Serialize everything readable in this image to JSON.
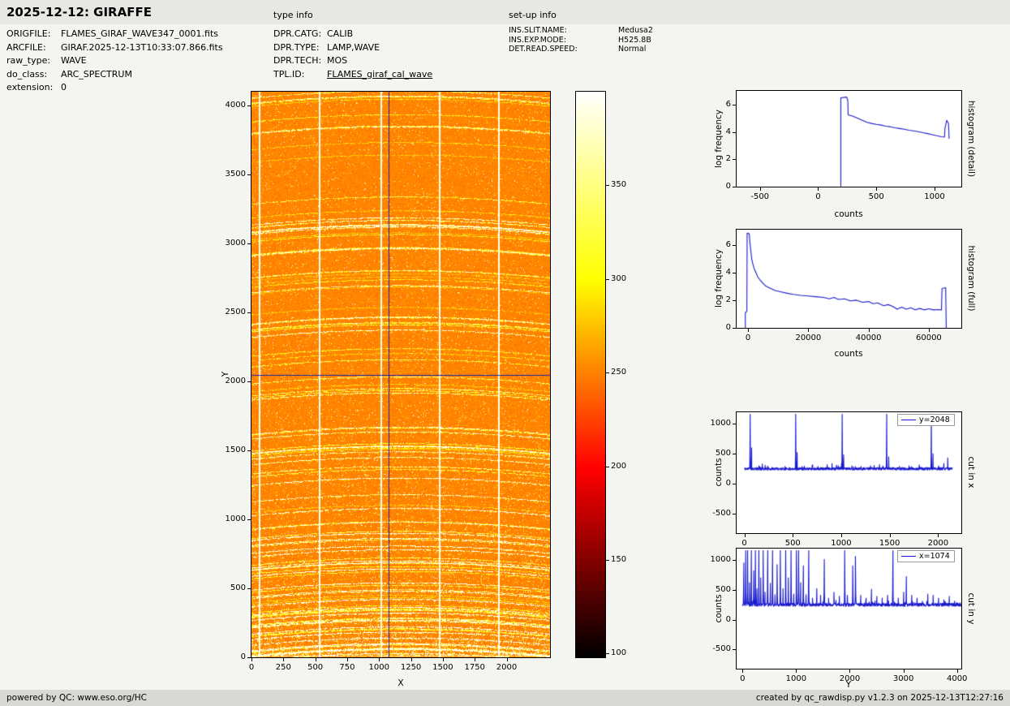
{
  "header": {
    "title": "2025-12-12: GIRAFFE",
    "type_info_label": "type info",
    "setup_info_label": "set-up info"
  },
  "file_info": {
    "rows": [
      {
        "label": "ORIGFILE:",
        "value": "FLAMES_GIRAF_WAVE347_0001.fits"
      },
      {
        "label": "ARCFILE:",
        "value": "GIRAF.2025-12-13T10:33:07.866.fits"
      },
      {
        "label": "raw_type:",
        "value": "WAVE"
      },
      {
        "label": "do_class:",
        "value": "ARC_SPECTRUM"
      },
      {
        "label": "extension:",
        "value": "0"
      }
    ]
  },
  "type_info": {
    "rows": [
      {
        "label": "DPR.CATG:",
        "value": "CALIB"
      },
      {
        "label": "DPR.TYPE:",
        "value": "LAMP,WAVE"
      },
      {
        "label": "DPR.TECH:",
        "value": "MOS"
      },
      {
        "label": "TPL.ID:",
        "value": "FLAMES_giraf_cal_wave"
      }
    ]
  },
  "setup_info": {
    "rows": [
      {
        "label": "INS.SLIT.NAME:",
        "value": "Medusa2"
      },
      {
        "label": "INS.EXP.MODE:",
        "value": "H525.8B"
      },
      {
        "label": "DET.READ.SPEED:",
        "value": "Normal"
      }
    ]
  },
  "footer": {
    "left": "powered by QC: www.eso.org/HC",
    "right": "created by qc_rawdisp.py v1.2.3 on 2025-12-13T12:27:16"
  },
  "colors": {
    "line_blue": "#1a1acd",
    "crosshair_blue": "#2222aa",
    "header_bg": "#e7e7e4",
    "footer_bg": "#d8d8d4",
    "page_bg": "#f4f4f1",
    "colormap": "hot"
  },
  "chart_data": [
    {
      "id": "raw_image",
      "type": "heatmap",
      "xlabel": "X",
      "ylabel": "Y",
      "xlim": [
        0,
        2340
      ],
      "ylim": [
        0,
        4100
      ],
      "xticks": [
        0,
        250,
        500,
        750,
        1000,
        1250,
        1500,
        1750,
        2000
      ],
      "yticks": [
        0,
        500,
        1000,
        1500,
        2000,
        2500,
        3000,
        3500,
        4000
      ],
      "background_level": 250,
      "bright_columns": [
        60,
        530,
        1010,
        1470,
        1930
      ],
      "crosshair": {
        "x": 1074,
        "y": 2048
      },
      "colorbar": {
        "range": [
          98,
          400
        ],
        "ticks": [
          100,
          150,
          200,
          250,
          300,
          350
        ]
      }
    },
    {
      "id": "histogram_detail",
      "type": "line",
      "side_label": "histogram (detail)",
      "xlabel": "counts",
      "ylabel": "log frequency",
      "xlim": [
        -700,
        1230
      ],
      "ylim": [
        0,
        7
      ],
      "xticks": [
        -500,
        0,
        500,
        1000
      ],
      "yticks": [
        0,
        2,
        4,
        6
      ],
      "points": [
        [
          195,
          0
        ],
        [
          195,
          6.5
        ],
        [
          245,
          6.55
        ],
        [
          255,
          6.3
        ],
        [
          258,
          5.25
        ],
        [
          300,
          5.15
        ],
        [
          340,
          5.0
        ],
        [
          380,
          4.85
        ],
        [
          420,
          4.7
        ],
        [
          460,
          4.62
        ],
        [
          500,
          4.55
        ],
        [
          540,
          4.5
        ],
        [
          580,
          4.42
        ],
        [
          620,
          4.38
        ],
        [
          660,
          4.3
        ],
        [
          700,
          4.25
        ],
        [
          740,
          4.2
        ],
        [
          780,
          4.12
        ],
        [
          820,
          4.08
        ],
        [
          860,
          4.02
        ],
        [
          900,
          3.95
        ],
        [
          940,
          3.88
        ],
        [
          980,
          3.8
        ],
        [
          1020,
          3.72
        ],
        [
          1060,
          3.65
        ],
        [
          1085,
          3.62
        ],
        [
          1090,
          4.3
        ],
        [
          1105,
          4.85
        ],
        [
          1120,
          4.6
        ],
        [
          1125,
          3.5
        ]
      ]
    },
    {
      "id": "histogram_full",
      "type": "line",
      "side_label": "histogram (full)",
      "xlabel": "counts",
      "ylabel": "log frequency",
      "xlim": [
        -3800,
        70800
      ],
      "ylim": [
        0,
        7.1
      ],
      "xticks": [
        0,
        20000,
        40000,
        60000
      ],
      "yticks": [
        0,
        2,
        4,
        6
      ],
      "points": [
        [
          -900,
          0
        ],
        [
          -900,
          1.1
        ],
        [
          -400,
          1.2
        ],
        [
          -300,
          6.85
        ],
        [
          400,
          6.8
        ],
        [
          600,
          6.2
        ],
        [
          900,
          5.6
        ],
        [
          1200,
          5.0
        ],
        [
          1600,
          4.6
        ],
        [
          2000,
          4.3
        ],
        [
          2600,
          4.0
        ],
        [
          3200,
          3.7
        ],
        [
          4000,
          3.45
        ],
        [
          5000,
          3.2
        ],
        [
          6000,
          3.0
        ],
        [
          7500,
          2.85
        ],
        [
          9000,
          2.7
        ],
        [
          11000,
          2.6
        ],
        [
          13000,
          2.5
        ],
        [
          15000,
          2.42
        ],
        [
          17500,
          2.35
        ],
        [
          20000,
          2.3
        ],
        [
          22500,
          2.25
        ],
        [
          25000,
          2.2
        ],
        [
          27000,
          2.1
        ],
        [
          28500,
          2.2
        ],
        [
          30000,
          2.05
        ],
        [
          32000,
          2.1
        ],
        [
          34000,
          1.95
        ],
        [
          36000,
          2.0
        ],
        [
          38000,
          1.85
        ],
        [
          40000,
          1.9
        ],
        [
          41500,
          1.75
        ],
        [
          43000,
          1.8
        ],
        [
          45000,
          1.6
        ],
        [
          46500,
          1.68
        ],
        [
          48000,
          1.55
        ],
        [
          49500,
          1.35
        ],
        [
          51000,
          1.5
        ],
        [
          52500,
          1.35
        ],
        [
          54000,
          1.45
        ],
        [
          55500,
          1.3
        ],
        [
          57000,
          1.4
        ],
        [
          58500,
          1.3
        ],
        [
          60000,
          1.38
        ],
        [
          61500,
          1.3
        ],
        [
          63000,
          1.32
        ],
        [
          64200,
          1.3
        ],
        [
          64400,
          2.85
        ],
        [
          65600,
          2.9
        ],
        [
          65800,
          0
        ]
      ]
    },
    {
      "id": "cut_x",
      "type": "line",
      "side_label": "cut in x",
      "xlabel": "X",
      "ylabel": "counts",
      "legend": "y=2048",
      "xlim": [
        -80,
        2240
      ],
      "ylim": [
        -820,
        1190
      ],
      "xticks": [
        0,
        500,
        1000,
        1500,
        2000
      ],
      "yticks": [
        -500,
        0,
        500,
        1000
      ],
      "baseline": 250,
      "data_range": [
        0,
        2150
      ],
      "noise_amp": 22,
      "seed": 11,
      "spikes": [
        [
          60,
          1160
        ],
        [
          75,
          600
        ],
        [
          150,
          300
        ],
        [
          185,
          330
        ],
        [
          215,
          310
        ],
        [
          240,
          295
        ],
        [
          420,
          290
        ],
        [
          530,
          1160
        ],
        [
          545,
          520
        ],
        [
          620,
          295
        ],
        [
          700,
          305
        ],
        [
          760,
          290
        ],
        [
          855,
          320
        ],
        [
          905,
          335
        ],
        [
          1010,
          1160
        ],
        [
          1025,
          480
        ],
        [
          1110,
          300
        ],
        [
          1205,
          290
        ],
        [
          1340,
          305
        ],
        [
          1395,
          320
        ],
        [
          1430,
          300
        ],
        [
          1470,
          1160
        ],
        [
          1490,
          450
        ],
        [
          1600,
          290
        ],
        [
          1700,
          300
        ],
        [
          1805,
          315
        ],
        [
          1930,
          1160
        ],
        [
          1948,
          500
        ],
        [
          2005,
          300
        ],
        [
          2060,
          340
        ],
        [
          2100,
          430
        ]
      ]
    },
    {
      "id": "cut_y",
      "type": "line",
      "side_label": "cut in y",
      "xlabel": "Y",
      "ylabel": "counts",
      "legend": "x=1074",
      "xlim": [
        -110,
        4080
      ],
      "ylim": [
        -820,
        1190
      ],
      "xticks": [
        0,
        1000,
        2000,
        3000,
        4000
      ],
      "yticks": [
        -500,
        0,
        500,
        1000
      ],
      "baseline": 250,
      "data_range": [
        0,
        4096
      ],
      "noise_amp": 26,
      "seed": 23,
      "spikes": [
        [
          25,
          950
        ],
        [
          60,
          1160
        ],
        [
          95,
          1160
        ],
        [
          130,
          620
        ],
        [
          165,
          1160
        ],
        [
          210,
          820
        ],
        [
          240,
          1160
        ],
        [
          270,
          520
        ],
        [
          305,
          1160
        ],
        [
          340,
          700
        ],
        [
          385,
          1160
        ],
        [
          420,
          460
        ],
        [
          470,
          1160
        ],
        [
          520,
          610
        ],
        [
          560,
          1160
        ],
        [
          605,
          420
        ],
        [
          645,
          920
        ],
        [
          705,
          1160
        ],
        [
          755,
          520
        ],
        [
          805,
          1160
        ],
        [
          855,
          700
        ],
        [
          905,
          1160
        ],
        [
          955,
          430
        ],
        [
          1005,
          1160
        ],
        [
          1045,
          1160
        ],
        [
          1085,
          620
        ],
        [
          1135,
          900
        ],
        [
          1185,
          420
        ],
        [
          1235,
          1160
        ],
        [
          1305,
          360
        ],
        [
          1385,
          520
        ],
        [
          1455,
          410
        ],
        [
          1525,
          1010
        ],
        [
          1605,
          360
        ],
        [
          1705,
          460
        ],
        [
          1805,
          390
        ],
        [
          1905,
          1160
        ],
        [
          1955,
          410
        ],
        [
          2055,
          900
        ],
        [
          2105,
          1060
        ],
        [
          2205,
          410
        ],
        [
          2305,
          360
        ],
        [
          2405,
          510
        ],
        [
          2505,
          390
        ],
        [
          2605,
          360
        ],
        [
          2705,
          410
        ],
        [
          2805,
          1160
        ],
        [
          2905,
          360
        ],
        [
          3005,
          460
        ],
        [
          3055,
          720
        ],
        [
          3155,
          410
        ],
        [
          3255,
          360
        ],
        [
          3355,
          310
        ],
        [
          3455,
          430
        ],
        [
          3555,
          410
        ],
        [
          3655,
          360
        ],
        [
          3755,
          330
        ],
        [
          3855,
          390
        ],
        [
          3955,
          310
        ]
      ]
    }
  ]
}
